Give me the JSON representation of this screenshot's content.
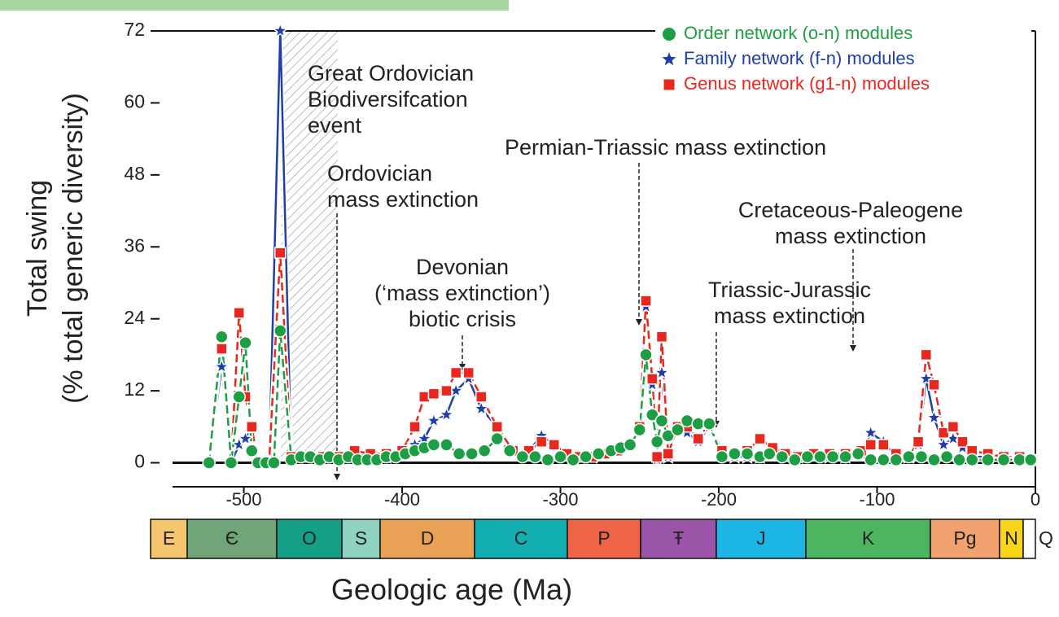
{
  "chart_data": {
    "type": "line",
    "xlabel": "Geologic age (Ma)",
    "ylabel": [
      "Total swing",
      "(% total generic diversity)"
    ],
    "xlim": [
      -545,
      0
    ],
    "xticks": [
      -500,
      -400,
      -300,
      -200,
      -100,
      0
    ],
    "ylim": [
      -4,
      72
    ],
    "yticks": [
      0,
      12,
      24,
      36,
      48,
      60,
      72
    ],
    "legend": "top-right",
    "series": [
      {
        "name": "Family network (f-n) modules",
        "color": "#1f3fa8",
        "marker": "star",
        "x": [
          -522,
          -514,
          -508,
          -503,
          -499,
          -495,
          -491,
          -484,
          -477,
          -470,
          -460,
          -450,
          -440,
          -430,
          -420,
          -410,
          -400,
          -392,
          -386,
          -380,
          -372,
          -366,
          -358,
          -350,
          -340,
          -330,
          -320,
          -312,
          -304,
          -296,
          -288,
          -280,
          -272,
          -264,
          -256,
          -250,
          -246,
          -242,
          -239,
          -236,
          -232,
          -226,
          -220,
          -213,
          -206,
          -198,
          -190,
          -182,
          -174,
          -166,
          -158,
          -150,
          -140,
          -130,
          -120,
          -110,
          -104,
          -96,
          -88,
          -80,
          -74,
          -69,
          -64,
          -58,
          -52,
          -46,
          -40,
          -30,
          -20,
          -10,
          -3
        ],
        "values": [
          0,
          16,
          0,
          3,
          4,
          6,
          0,
          0,
          72,
          0.5,
          1,
          1,
          1,
          2,
          1,
          1,
          1.5,
          3,
          4,
          7,
          8,
          12,
          14,
          9,
          6,
          2,
          2,
          4.5,
          3,
          1.5,
          1,
          1,
          1.5,
          2,
          3,
          6,
          26,
          13,
          0.5,
          15,
          1,
          6,
          5,
          3.5,
          6,
          1.5,
          1,
          1,
          1,
          2,
          1,
          1,
          1.5,
          1,
          1,
          1.5,
          5,
          3.5,
          1,
          1,
          3,
          14,
          7.5,
          3,
          4,
          2.5,
          1,
          1,
          0.5,
          0.5,
          0.5
        ]
      },
      {
        "name": "Genus network (g1-n) modules",
        "color": "#e8281e",
        "marker": "square",
        "x": [
          -522,
          -514,
          -508,
          -503,
          -499,
          -495,
          -491,
          -484,
          -477,
          -470,
          -460,
          -450,
          -440,
          -430,
          -420,
          -410,
          -400,
          -392,
          -386,
          -380,
          -372,
          -366,
          -358,
          -350,
          -340,
          -330,
          -320,
          -312,
          -304,
          -296,
          -288,
          -280,
          -272,
          -264,
          -256,
          -250,
          -246,
          -242,
          -239,
          -236,
          -232,
          -226,
          -220,
          -213,
          -206,
          -198,
          -190,
          -182,
          -174,
          -166,
          -158,
          -150,
          -140,
          -130,
          -120,
          -110,
          -104,
          -96,
          -88,
          -80,
          -74,
          -69,
          -64,
          -58,
          -52,
          -46,
          -40,
          -30,
          -20,
          -10,
          -3
        ],
        "values": [
          0,
          19,
          0,
          25,
          11,
          6,
          0,
          0,
          35,
          1,
          1,
          1,
          1,
          2,
          1.5,
          1.5,
          2,
          6,
          11,
          11.5,
          12,
          15,
          15,
          11,
          6,
          2,
          2,
          3.5,
          3,
          1.5,
          1,
          1,
          1.5,
          2,
          3,
          6,
          27,
          14,
          1,
          21,
          1.5,
          6,
          6,
          4,
          6.5,
          2,
          1.5,
          2,
          4,
          2.5,
          1.5,
          1,
          1.5,
          1.5,
          1.5,
          2,
          3,
          3,
          1.5,
          1,
          3.5,
          18,
          13,
          5,
          6,
          3.5,
          2,
          1.5,
          1,
          1,
          0.5
        ]
      },
      {
        "name": "Order network (o-n) modules",
        "color": "#1e9e44",
        "marker": "circle",
        "x": [
          -522,
          -514,
          -508,
          -503,
          -499,
          -495,
          -491,
          -486,
          -481,
          -477,
          -470,
          -464,
          -458,
          -452,
          -446,
          -440,
          -434,
          -428,
          -422,
          -416,
          -410,
          -404,
          -398,
          -392,
          -386,
          -380,
          -372,
          -364,
          -356,
          -348,
          -340,
          -332,
          -324,
          -316,
          -308,
          -300,
          -292,
          -284,
          -276,
          -268,
          -262,
          -256,
          -250,
          -246,
          -242,
          -239,
          -236,
          -232,
          -226,
          -220,
          -213,
          -206,
          -198,
          -190,
          -182,
          -174,
          -168,
          -160,
          -152,
          -144,
          -136,
          -128,
          -120,
          -112,
          -104,
          -96,
          -88,
          -80,
          -72,
          -64,
          -56,
          -48,
          -40,
          -30,
          -20,
          -10,
          -3
        ],
        "values": [
          0,
          21,
          0,
          11,
          20,
          2,
          0,
          0,
          0,
          22,
          0.5,
          1,
          1,
          0.5,
          1,
          0.5,
          1,
          0.5,
          0.5,
          0.5,
          1,
          1,
          1.5,
          2,
          2.5,
          3,
          3,
          1.5,
          1.5,
          2,
          4,
          2,
          1,
          1,
          0.5,
          1,
          0.5,
          1,
          1.5,
          2,
          2.5,
          3,
          5.5,
          18,
          8,
          3.5,
          7,
          4.5,
          5.5,
          7,
          6.5,
          6.5,
          1,
          1.5,
          1.5,
          1,
          1.5,
          1,
          0.5,
          1,
          1,
          1,
          1,
          1.5,
          0.5,
          0.5,
          0.5,
          1,
          1,
          0.5,
          1,
          0.5,
          0.5,
          0.5,
          0.5,
          0.5,
          0.5
        ]
      }
    ],
    "legend_order": [
      "Order network (o-n) modules",
      "Family network (f-n) modules",
      "Genus network (g1-n) modules"
    ],
    "annotations": [
      {
        "text": [
          "Great Ordovician",
          "Biodiversifcation",
          "event"
        ]
      },
      {
        "text": [
          "Ordovician",
          "mass extinction"
        ]
      },
      {
        "text": [
          "Devonian",
          "(‘mass extinction’)",
          "biotic crisis"
        ]
      },
      {
        "text": [
          "Permian-Triassic mass extinction"
        ]
      },
      {
        "text": [
          "Cretaceous-Paleogene",
          "mass extinction"
        ]
      },
      {
        "text": [
          "Triassic-Jurassic",
          "mass extinction"
        ]
      }
    ],
    "periods": [
      {
        "label": "E",
        "color": "#f6c66e"
      },
      {
        "label": "Є",
        "color": "#6fa578"
      },
      {
        "label": "O",
        "color": "#14a086"
      },
      {
        "label": "S",
        "color": "#90d2c2"
      },
      {
        "label": "D",
        "color": "#e9a255"
      },
      {
        "label": "C",
        "color": "#12aeb0"
      },
      {
        "label": "P",
        "color": "#ef6447"
      },
      {
        "label": "Ŧ",
        "color": "#9b55a8"
      },
      {
        "label": "J",
        "color": "#1db4e6"
      },
      {
        "label": "K",
        "color": "#4db560"
      },
      {
        "label": "Pg",
        "color": "#f2a26e"
      },
      {
        "label": "N",
        "color": "#f7d51a"
      },
      {
        "label": "Q",
        "color": "#ffffff"
      }
    ]
  }
}
